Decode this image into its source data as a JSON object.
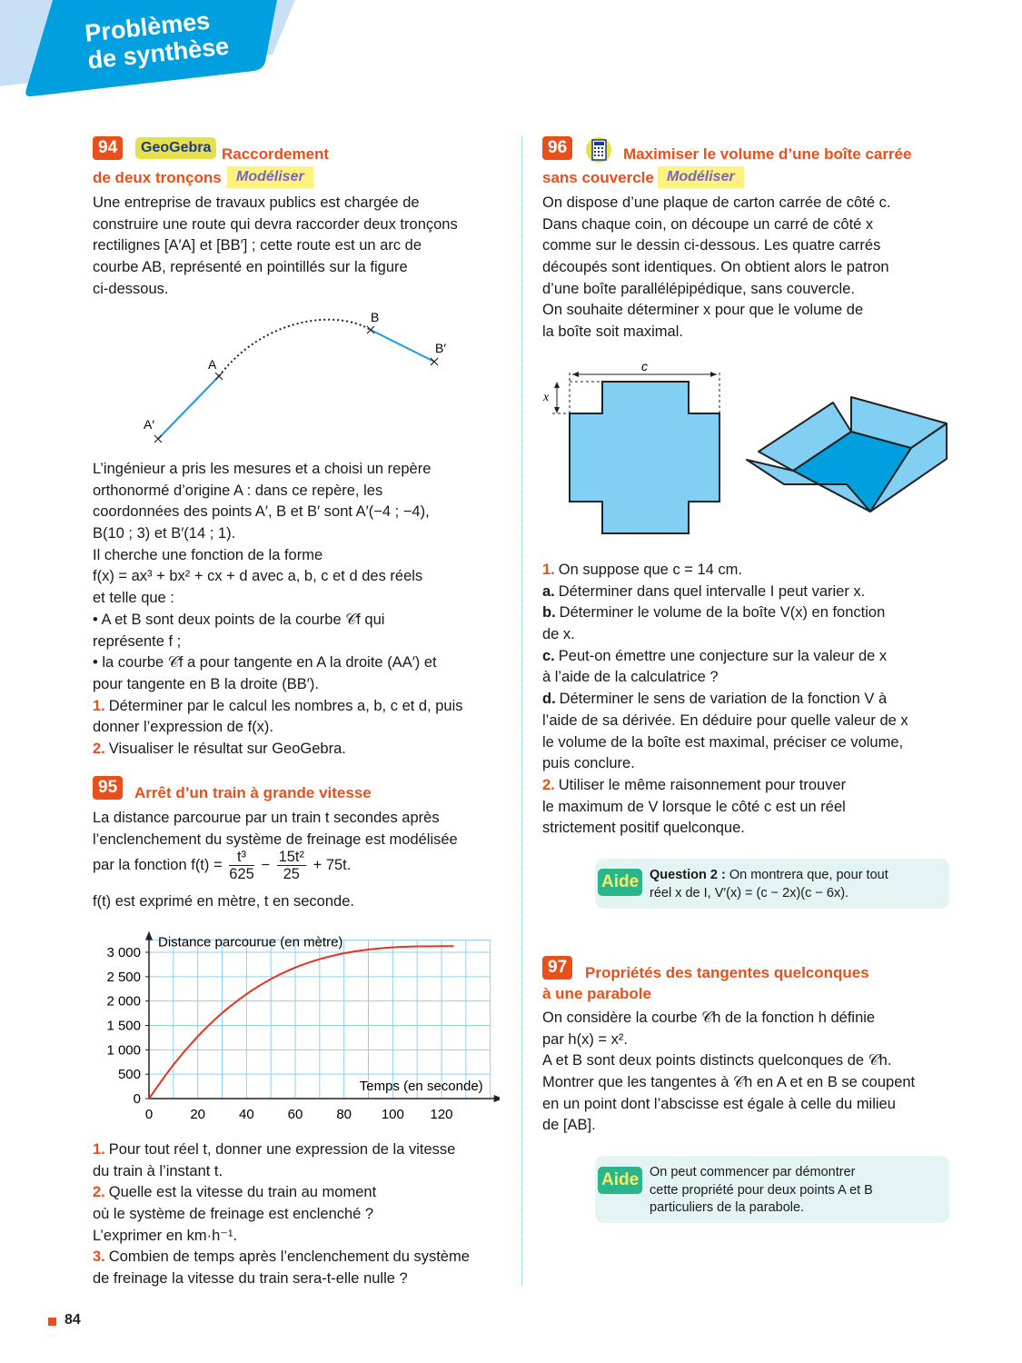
{
  "header": {
    "title_line1": "Problèmes",
    "title_line2": "de synthèse",
    "colors": {
      "banner": "#009fe0",
      "banner_light": "#c8e0f5"
    }
  },
  "colors": {
    "accent": "#e8501b",
    "skill_bg": "#fff27f",
    "skill_text": "#7566c2",
    "curve": "#e8321b",
    "grid": "#8fd0f0",
    "shape": "#82cff4",
    "shape_dark": "#009fe0"
  },
  "ex94": {
    "number": "94",
    "tag": "GeoGebra",
    "title_line1": "Raccordement",
    "title_line2": "de deux tronçons",
    "skill": "Modéliser",
    "intro": [
      {
        "t": "Une entreprise de travaux publics est chargée de"
      },
      {
        "t": "construire une route qui devra raccorder deux tronçons"
      },
      {
        "t": "rectilignes [A′A] et [BB′] ; cette route est un arc de"
      },
      {
        "t": "courbe AB, représenté en pointillés sur la figure"
      },
      {
        "t": "ci-dessous."
      }
    ],
    "figure": {
      "A": "A",
      "B": "B",
      "A_prime": "A′",
      "B_prime": "B′"
    },
    "body": [
      {
        "t": "L’ingénieur a pris les mesures et a choisi un repère"
      },
      {
        "t": "orthonormé d’origine A : dans ce repère, les"
      },
      {
        "t": "coordonnées des points A′, B et B′ sont A′(−4 ; −4),"
      },
      {
        "t": "B(10 ; 3) et B′(14 ; 1)."
      },
      {
        "t": "Il cherche une fonction de la forme"
      },
      {
        "t": "f(x) = ax³ + bx² + cx + d avec a, b, c et d des réels"
      },
      {
        "t": "et telle que :"
      },
      {
        "t": "• A et B sont deux points de la courbe 𝒞f qui"
      },
      {
        "t": "représente f ;"
      },
      {
        "t": "• la courbe 𝒞f a pour tangente en A la droite (AA′) et"
      },
      {
        "t": "pour tangente en B la droite (BB′)."
      },
      {
        "p": "1.",
        "t": "Déterminer par le calcul les nombres a, b, c et d, puis"
      },
      {
        "t": "donner l’expression de f(x)."
      },
      {
        "p": "2.",
        "t": "Visualiser le résultat sur GeoGebra."
      }
    ]
  },
  "ex95": {
    "number": "95",
    "title": "Arrêt d’un train à grande vitesse",
    "intro": [
      {
        "t": "La distance parcourue par un train t secondes après"
      },
      {
        "t": "l’enclenchement du système de freinage est modélisée"
      }
    ],
    "formula": {
      "prefix": "par la fonction f(t) =",
      "frac1_num": "t³",
      "frac1_den": "625",
      "op": "−",
      "frac2_num": "15t²",
      "frac2_den": "25",
      "rest": "+ 75t."
    },
    "units": "f(t) est exprimé en mètre, t en seconde.",
    "questions": [
      {
        "p": "1.",
        "t": "Pour tout réel t, donner une expression de la vitesse"
      },
      {
        "t": "du train à l’instant t."
      },
      {
        "p": "2.",
        "t": "Quelle est la vitesse du train au moment"
      },
      {
        "t": "où le système de freinage est enclenché ?"
      },
      {
        "t": "L’exprimer en km·h⁻¹."
      },
      {
        "p": "3.",
        "t": "Combien de temps après l’enclenchement du système"
      },
      {
        "t": "de freinage la vitesse du train sera-t-elle nulle ?"
      }
    ]
  },
  "chart_data": {
    "type": "line",
    "ylabel": "Distance parcourue (en mètre)",
    "xlabel": "Temps (en seconde)",
    "xlim": [
      0,
      140
    ],
    "ylim": [
      0,
      3250
    ],
    "grid": true,
    "x_ticks": [
      "0",
      "20",
      "40",
      "60",
      "80",
      "100",
      "120"
    ],
    "y_ticks": [
      "0",
      "500",
      "1 000",
      "1 500",
      "2 000",
      "2 500",
      "3 000"
    ],
    "series": [
      {
        "x": [
          0,
          10,
          20,
          30,
          40,
          50,
          60,
          70,
          80,
          90,
          100,
          110,
          120,
          125
        ],
        "y": [
          0,
          692,
          1273,
          1753,
          2142,
          2450,
          2686,
          2859,
          2979,
          3056,
          3100,
          3120,
          3125,
          3125
        ]
      }
    ]
  },
  "ex96": {
    "number": "96",
    "icon": "calculator-icon",
    "title_line1": "Maximiser le volume d’une boîte carrée",
    "title_line2": "sans couvercle",
    "skill": "Modéliser",
    "intro": [
      {
        "t": "On dispose d’une plaque de carton carrée de côté c."
      },
      {
        "t": "Dans chaque coin, on découpe un carré de côté x"
      },
      {
        "t": "comme sur le dessin ci-dessous. Les quatre carrés"
      },
      {
        "t": "découpés sont identiques. On obtient alors le patron"
      },
      {
        "t": "d’une boîte parallélépipédique, sans couvercle."
      },
      {
        "t": "On souhaite déterminer x pour que le volume de"
      },
      {
        "t": "la boîte soit maximal."
      }
    ],
    "figure": {
      "c_label": "c",
      "x_label": "x"
    },
    "questions": [
      {
        "p": "1.",
        "t": "On suppose que c = 14 cm."
      },
      {
        "l": "a.",
        "t": "Déterminer dans quel intervalle I peut varier x."
      },
      {
        "l": "b.",
        "t": "Déterminer le volume de la boîte V(x) en fonction"
      },
      {
        "t": "de x."
      },
      {
        "l": "c.",
        "t": "Peut-on émettre une conjecture sur la valeur de x"
      },
      {
        "t": "à l’aide de la calculatrice ?"
      },
      {
        "l": "d.",
        "t": "Déterminer le sens de variation de la fonction V à"
      },
      {
        "t": "l’aide de sa dérivée. En déduire pour quelle valeur de x"
      },
      {
        "t": "le volume de la boîte est maximal, préciser ce volume,"
      },
      {
        "t": "puis conclure."
      },
      {
        "p": "2.",
        "t": "Utiliser le même raisonnement pour trouver"
      },
      {
        "t": "le maximum de V lorsque le côté c est un réel"
      },
      {
        "t": "strictement positif quelconque."
      }
    ],
    "aide": {
      "label": "Aide",
      "bold": "Question 2 :",
      "line1": " On montrera que, pour tout",
      "line2": "réel x de I, V′(x) = (c − 2x)(c − 6x)."
    }
  },
  "ex97": {
    "number": "97",
    "title_line1": "Propriétés des tangentes quelconques",
    "title_line2": "à une parabole",
    "body": [
      {
        "t": "On considère la courbe 𝒞h de la fonction h définie"
      },
      {
        "t": "par h(x) = x²."
      },
      {
        "t": "A et B sont deux points distincts quelconques de 𝒞h."
      },
      {
        "t": "Montrer que les tangentes à 𝒞h en A et en B se coupent"
      },
      {
        "t": "en un point dont l’abscisse est égale à celle du milieu"
      },
      {
        "t": "de [AB]."
      }
    ],
    "aide": {
      "label": "Aide",
      "line1": "On peut commencer par démontrer",
      "line2": "cette propriété pour deux points A et B",
      "line3": "particuliers de la parabole."
    }
  },
  "footer": {
    "page_number": "84"
  }
}
